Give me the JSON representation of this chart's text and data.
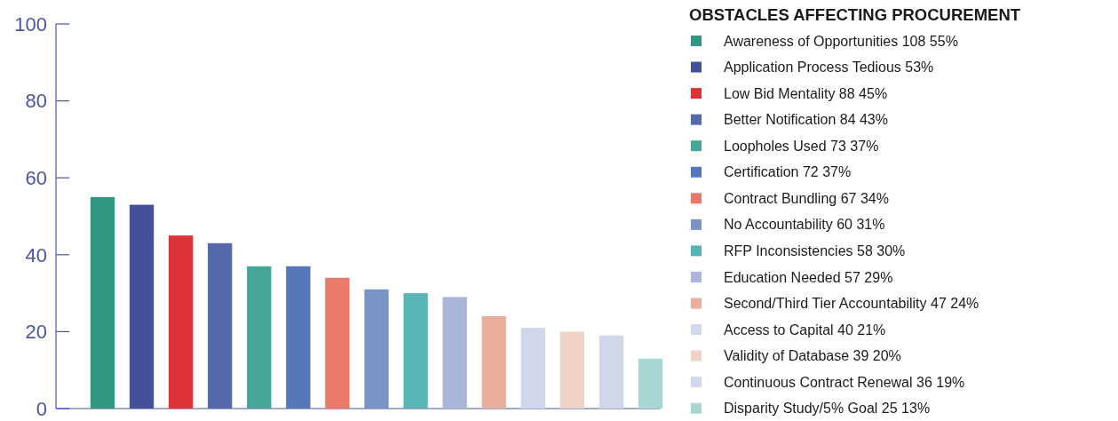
{
  "chart_data": {
    "type": "bar",
    "legend_title": "OBSTACLES AFFECTING PROCUREMENT",
    "categories": [
      null,
      null,
      null,
      null,
      null,
      null,
      null,
      null,
      null,
      null,
      null,
      null,
      null,
      null,
      null
    ],
    "stacked": true,
    "series": [
      {
        "name": "Awareness of Opportunities 108 55%",
        "color": "#339683",
        "values": [
          55,
          null,
          null,
          null,
          null,
          null,
          null,
          null,
          null,
          null,
          null,
          null,
          null,
          null,
          null
        ]
      },
      {
        "name": "Application Process Tedious  53%",
        "color": "#43519a",
        "values": [
          null,
          53,
          null,
          null,
          null,
          null,
          null,
          null,
          null,
          null,
          null,
          null,
          null,
          null,
          null
        ]
      },
      {
        "name": "Low Bid Mentality 88 45%",
        "color": "#dc3338",
        "values": [
          null,
          null,
          45,
          null,
          null,
          null,
          null,
          null,
          null,
          null,
          null,
          null,
          null,
          null,
          null
        ]
      },
      {
        "name": "Better Notification 84 43%",
        "color": "#5468aa",
        "values": [
          null,
          null,
          null,
          43,
          null,
          null,
          null,
          null,
          null,
          null,
          null,
          null,
          null,
          null,
          null
        ]
      },
      {
        "name": "Loopholes Used 73 37%",
        "color": "#45a596",
        "values": [
          null,
          null,
          null,
          null,
          37,
          null,
          null,
          null,
          null,
          null,
          null,
          null,
          null,
          null,
          null
        ]
      },
      {
        "name": "Certification 72 37%",
        "color": "#5877b9",
        "values": [
          null,
          null,
          null,
          null,
          null,
          37,
          null,
          null,
          null,
          null,
          null,
          null,
          null,
          null,
          null
        ]
      },
      {
        "name": "Contract Bundling 67 34%",
        "color": "#e97a68",
        "values": [
          null,
          null,
          null,
          null,
          null,
          null,
          34,
          null,
          null,
          null,
          null,
          null,
          null,
          null,
          null
        ]
      },
      {
        "name": "No Accountability 60 31%",
        "color": "#7a93c5",
        "values": [
          null,
          null,
          null,
          null,
          null,
          null,
          null,
          31,
          null,
          null,
          null,
          null,
          null,
          null,
          null
        ]
      },
      {
        "name": "RFP Inconsistencies 58 30%",
        "color": "#57b6b5",
        "values": [
          null,
          null,
          null,
          null,
          null,
          null,
          null,
          null,
          30,
          null,
          null,
          null,
          null,
          null,
          null
        ]
      },
      {
        "name": "Education Needed 57 29%",
        "color": "#a9b6da",
        "values": [
          null,
          null,
          null,
          null,
          null,
          null,
          null,
          null,
          null,
          29,
          null,
          null,
          null,
          null,
          null
        ]
      },
      {
        "name": "Second/Third Tier Accountability 47 24%",
        "color": "#ebad9b",
        "values": [
          null,
          null,
          null,
          null,
          null,
          null,
          null,
          null,
          null,
          null,
          24,
          null,
          null,
          null,
          null
        ]
      },
      {
        "name": "Access to Capital  40 21%",
        "color": "#d1d7ea",
        "values": [
          null,
          null,
          null,
          null,
          null,
          null,
          null,
          null,
          null,
          null,
          null,
          21,
          null,
          null,
          null
        ]
      },
      {
        "name": "Validity of Database 39 20%",
        "color": "#f0d2c6",
        "values": [
          null,
          null,
          null,
          null,
          null,
          null,
          null,
          null,
          null,
          null,
          null,
          null,
          20,
          null,
          null
        ]
      },
      {
        "name": "Continuous Contract Renewal 36 19%",
        "color": "#d0d7e9",
        "values": [
          null,
          null,
          null,
          null,
          null,
          null,
          null,
          null,
          null,
          null,
          null,
          null,
          null,
          19,
          null
        ]
      },
      {
        "name": "Disparity Study/5% Goal 25 13%",
        "color": "#a7d6d3",
        "values": [
          null,
          null,
          null,
          null,
          null,
          null,
          null,
          null,
          null,
          null,
          null,
          null,
          null,
          null,
          13
        ]
      }
    ],
    "ylim": [
      0,
      100
    ],
    "yticks": [
      0,
      20,
      40,
      60,
      80,
      100
    ],
    "legend": "right",
    "tick_labels": "y"
  }
}
